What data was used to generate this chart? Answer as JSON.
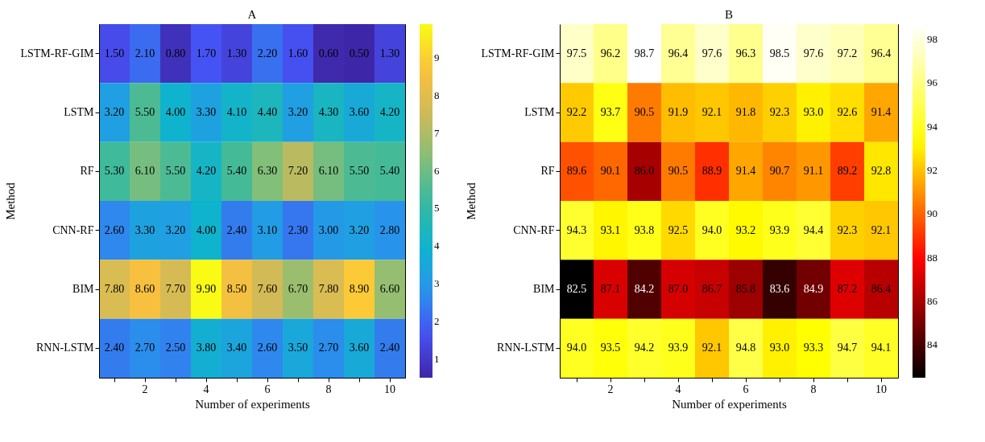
{
  "chart_data": [
    {
      "type": "heatmap",
      "title": "A",
      "xlabel": "Number of experiments",
      "ylabel": "Method",
      "categories": [
        null,
        "2",
        null,
        "4",
        null,
        "6",
        null,
        "8",
        null,
        "10"
      ],
      "y_categories": [
        "LSTM-RF-GIM",
        "LSTM",
        "RF",
        "CNN-RF",
        "BIM",
        "RNN-LSTM"
      ],
      "cells": [
        [
          1.5,
          2.1,
          0.8,
          1.7,
          1.3,
          2.2,
          1.6,
          0.6,
          0.5,
          1.3
        ],
        [
          3.2,
          5.5,
          4.0,
          3.3,
          4.1,
          4.4,
          3.2,
          4.3,
          3.6,
          4.2
        ],
        [
          5.3,
          6.1,
          5.5,
          4.2,
          5.4,
          6.3,
          7.2,
          6.1,
          5.5,
          5.4
        ],
        [
          2.6,
          3.3,
          3.2,
          4.0,
          2.4,
          3.1,
          2.3,
          3.0,
          3.2,
          2.8
        ],
        [
          7.8,
          8.6,
          7.7,
          9.9,
          8.5,
          7.6,
          6.7,
          7.8,
          8.9,
          6.6
        ],
        [
          2.4,
          2.7,
          2.5,
          3.8,
          3.4,
          2.6,
          3.5,
          2.7,
          3.6,
          2.4
        ]
      ],
      "cell_labels": [
        [
          "1.50",
          "2.10",
          "0.80",
          "1.70",
          "1.30",
          "2.20",
          "1.60",
          "0.60",
          "0.50",
          "1.30"
        ],
        [
          "3.20",
          "5.50",
          "4.00",
          "3.30",
          "4.10",
          "4.40",
          "3.20",
          "4.30",
          "3.60",
          "4.20"
        ],
        [
          "5.30",
          "6.10",
          "5.50",
          "4.20",
          "5.40",
          "6.30",
          "7.20",
          "6.10",
          "5.50",
          "5.40"
        ],
        [
          "2.60",
          "3.30",
          "3.20",
          "4.00",
          "2.40",
          "3.10",
          "2.30",
          "3.00",
          "3.20",
          "2.80"
        ],
        [
          "7.80",
          "8.60",
          "7.70",
          "9.90",
          "8.50",
          "7.60",
          "6.70",
          "7.80",
          "8.90",
          "6.60"
        ],
        [
          "2.40",
          "2.70",
          "2.50",
          "3.80",
          "3.40",
          "2.60",
          "3.50",
          "2.70",
          "3.60",
          "2.40"
        ]
      ],
      "clim": [
        0.5,
        9.9
      ],
      "cticks": [
        1,
        2,
        3,
        4,
        5,
        6,
        7,
        8,
        9
      ]
    },
    {
      "type": "heatmap",
      "title": "B",
      "xlabel": "Number of experiments",
      "ylabel": "Method",
      "categories": [
        null,
        "2",
        null,
        "4",
        null,
        "6",
        null,
        "8",
        null,
        "10"
      ],
      "y_categories": [
        "LSTM-RF-GIM",
        "LSTM",
        "RF",
        "CNN-RF",
        "BIM",
        "RNN-LSTM"
      ],
      "cells": [
        [
          97.5,
          96.2,
          98.7,
          96.4,
          97.6,
          96.3,
          98.5,
          97.6,
          97.2,
          96.4
        ],
        [
          92.2,
          93.7,
          90.5,
          91.9,
          92.1,
          91.8,
          92.3,
          93.0,
          92.6,
          91.4
        ],
        [
          89.6,
          90.1,
          86.0,
          90.5,
          88.9,
          91.4,
          90.7,
          91.1,
          89.2,
          92.8
        ],
        [
          94.3,
          93.1,
          93.8,
          92.5,
          94.0,
          93.2,
          93.9,
          94.4,
          92.3,
          92.1
        ],
        [
          82.5,
          87.1,
          84.2,
          87.0,
          86.7,
          85.8,
          83.6,
          84.9,
          87.2,
          86.4
        ],
        [
          94.0,
          93.5,
          94.2,
          93.9,
          92.1,
          94.8,
          93.0,
          93.3,
          94.7,
          94.1
        ]
      ],
      "cell_labels": [
        [
          "97.5",
          "96.2",
          "98.7",
          "96.4",
          "97.6",
          "96.3",
          "98.5",
          "97.6",
          "97.2",
          "96.4"
        ],
        [
          "92.2",
          "93.7",
          "90.5",
          "91.9",
          "92.1",
          "91.8",
          "92.3",
          "93.0",
          "92.6",
          "91.4"
        ],
        [
          "89.6",
          "90.1",
          "86.0",
          "90.5",
          "88.9",
          "91.4",
          "90.7",
          "91.1",
          "89.2",
          "92.8"
        ],
        [
          "94.3",
          "93.1",
          "93.8",
          "92.5",
          "94.0",
          "93.2",
          "93.9",
          "94.4",
          "92.3",
          "92.1"
        ],
        [
          "82.5",
          "87.1",
          "84.2",
          "87.0",
          "86.7",
          "85.8",
          "83.6",
          "84.9",
          "87.2",
          "86.4"
        ],
        [
          "94.0",
          "93.5",
          "94.2",
          "93.9",
          "92.1",
          "94.8",
          "93.0",
          "93.3",
          "94.7",
          "94.1"
        ]
      ],
      "clim": [
        82.5,
        98.7
      ],
      "cticks": [
        84,
        86,
        88,
        90,
        92,
        94,
        96,
        98
      ]
    }
  ]
}
